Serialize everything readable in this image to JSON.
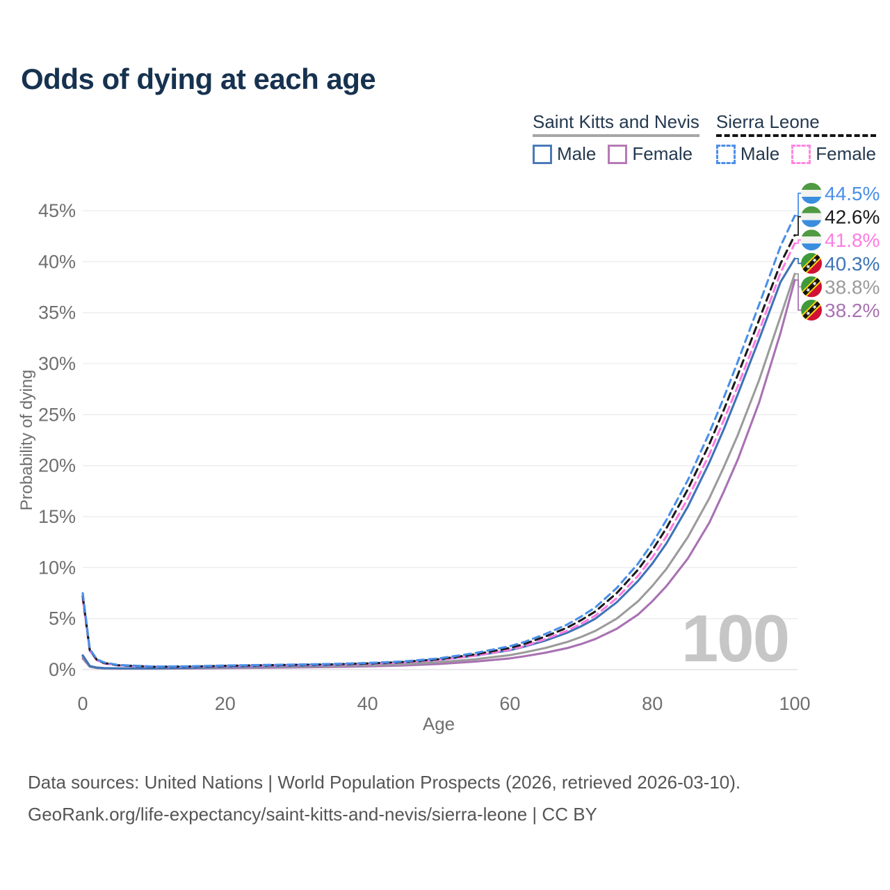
{
  "page": {
    "title": "Odds of dying at each age"
  },
  "legend": {
    "groups": [
      {
        "title": "Saint Kitts and Nevis",
        "line_style": "solid",
        "underline_color": "#a6a6a6",
        "items": [
          {
            "label": "Male",
            "color": "#4a7ab8"
          },
          {
            "label": "Female",
            "color": "#b57ab5"
          }
        ]
      },
      {
        "title": "Sierra Leone",
        "line_style": "dashed",
        "underline_color": "#141414",
        "items": [
          {
            "label": "Male",
            "color": "#4a8fe8"
          },
          {
            "label": "Female",
            "color": "#ff85e0"
          }
        ]
      }
    ]
  },
  "watermark": "100",
  "footer": {
    "line1": "Data sources: United Nations | World Population Prospects (2026, retrieved 2026-03-10).",
    "line2": "GeoRank.org/life-expectancy/saint-kitts-and-nevis/sierra-leone | CC BY"
  },
  "chart_data": {
    "type": "line",
    "title": "Odds of dying at each age",
    "xlabel": "Age",
    "ylabel": "Probability of dying",
    "xlim": [
      0,
      100
    ],
    "ylim": [
      0,
      45
    ],
    "grid": "horizontal",
    "legend_position": "top-right",
    "x_ticks": [
      {
        "v": 0,
        "label": "0"
      },
      {
        "v": 20,
        "label": "20"
      },
      {
        "v": 40,
        "label": "40"
      },
      {
        "v": 60,
        "label": "60"
      },
      {
        "v": 80,
        "label": "80"
      },
      {
        "v": 100,
        "label": "100"
      }
    ],
    "y_ticks": [
      {
        "v": 0,
        "label": "0%"
      },
      {
        "v": 5,
        "label": "5%"
      },
      {
        "v": 10,
        "label": "10%"
      },
      {
        "v": 15,
        "label": "15%"
      },
      {
        "v": 20,
        "label": "20%"
      },
      {
        "v": 25,
        "label": "25%"
      },
      {
        "v": 30,
        "label": "30%"
      },
      {
        "v": 35,
        "label": "35%"
      },
      {
        "v": 40,
        "label": "40%"
      },
      {
        "v": 45,
        "label": "45%"
      }
    ],
    "ages": [
      0,
      1,
      2,
      3,
      5,
      10,
      15,
      20,
      25,
      30,
      35,
      40,
      45,
      50,
      55,
      60,
      62,
      65,
      68,
      70,
      72,
      75,
      78,
      80,
      82,
      85,
      88,
      90,
      92,
      95,
      98,
      100
    ],
    "series": [
      {
        "country": "Sierra Leone",
        "sex": "male",
        "color": "#4a8fe8",
        "dashed": true,
        "flag": "sl",
        "end_label": "44.5%",
        "values": [
          7.5,
          2.0,
          1.0,
          0.7,
          0.45,
          0.3,
          0.32,
          0.4,
          0.45,
          0.5,
          0.55,
          0.65,
          0.8,
          1.1,
          1.6,
          2.3,
          2.7,
          3.5,
          4.4,
          5.2,
          6.1,
          8.0,
          10.4,
          12.4,
          14.7,
          18.6,
          23.2,
          26.6,
          30.2,
          35.8,
          41.5,
          44.5
        ]
      },
      {
        "country": "Sierra Leone",
        "sex": "all",
        "color": "#1b1b1b",
        "dashed": true,
        "flag": "sl",
        "end_label": "42.6%",
        "values": [
          7.2,
          1.9,
          0.95,
          0.65,
          0.42,
          0.28,
          0.3,
          0.37,
          0.42,
          0.47,
          0.52,
          0.6,
          0.75,
          1.02,
          1.48,
          2.12,
          2.5,
          3.25,
          4.1,
          4.85,
          5.7,
          7.5,
          9.8,
          11.7,
          13.9,
          17.7,
          22.1,
          25.4,
          28.9,
          34.3,
          39.8,
          42.6
        ]
      },
      {
        "country": "Sierra Leone",
        "sex": "female",
        "color": "#ff7ce2",
        "dashed": true,
        "flag": "sl",
        "end_label": "41.8%",
        "values": [
          6.9,
          1.8,
          0.9,
          0.6,
          0.4,
          0.27,
          0.28,
          0.34,
          0.38,
          0.43,
          0.48,
          0.56,
          0.7,
          0.94,
          1.36,
          1.95,
          2.3,
          3.0,
          3.8,
          4.5,
          5.3,
          7.0,
          9.2,
          11.0,
          13.1,
          16.8,
          21.1,
          24.4,
          27.8,
          33.2,
          38.9,
          41.8
        ]
      },
      {
        "country": "Saint Kitts and Nevis",
        "sex": "male",
        "color": "#3e74b6",
        "dashed": false,
        "flag": "skn",
        "end_label": "40.3%",
        "values": [
          1.4,
          0.35,
          0.2,
          0.15,
          0.12,
          0.12,
          0.18,
          0.28,
          0.33,
          0.38,
          0.45,
          0.55,
          0.7,
          0.95,
          1.35,
          1.9,
          2.25,
          2.85,
          3.6,
          4.25,
          5.0,
          6.6,
          8.7,
          10.4,
          12.4,
          16.0,
          20.3,
          23.5,
          27.0,
          32.4,
          38.0,
          40.3
        ]
      },
      {
        "country": "Saint Kitts and Nevis",
        "sex": "all",
        "color": "#9b9b9b",
        "dashed": false,
        "flag": "skn",
        "end_label": "38.8%",
        "values": [
          1.3,
          0.3,
          0.17,
          0.13,
          0.1,
          0.1,
          0.14,
          0.21,
          0.25,
          0.29,
          0.34,
          0.42,
          0.53,
          0.72,
          1.0,
          1.42,
          1.68,
          2.12,
          2.7,
          3.2,
          3.8,
          5.0,
          6.7,
          8.2,
          9.9,
          13.0,
          16.8,
          19.8,
          23.0,
          28.4,
          34.6,
          38.8
        ]
      },
      {
        "country": "Saint Kitts and Nevis",
        "sex": "female",
        "color": "#a872b2",
        "dashed": false,
        "flag": "skn",
        "end_label": "38.2%",
        "values": [
          1.1,
          0.27,
          0.15,
          0.11,
          0.09,
          0.09,
          0.11,
          0.15,
          0.18,
          0.22,
          0.26,
          0.32,
          0.4,
          0.55,
          0.78,
          1.1,
          1.3,
          1.66,
          2.1,
          2.5,
          3.0,
          4.0,
          5.4,
          6.7,
          8.2,
          10.9,
          14.4,
          17.4,
          20.6,
          26.2,
          33.0,
          38.2
        ]
      }
    ]
  }
}
